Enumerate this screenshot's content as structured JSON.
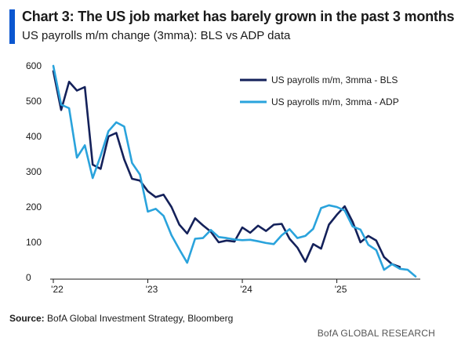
{
  "header": {
    "title": "Chart 3: The US job market has barely grown in the past 3 months",
    "subtitle": "US payrolls m/m change (3mma): BLS vs ADP data"
  },
  "footer": {
    "source_label": "Source:",
    "source_text": " BofA Global Investment Strategy, Bloomberg",
    "brand": "BofA GLOBAL RESEARCH"
  },
  "colors": {
    "accent": "#0b57d0",
    "bls": "#14215a",
    "adp": "#2aa3dc"
  },
  "chart_data": {
    "type": "line",
    "title": "Chart 3: The US job market has barely grown in the past 3 months",
    "subtitle": "US payrolls m/m change (3mma): BLS vs ADP data",
    "xlabel": "",
    "ylabel": "",
    "ylim": [
      0,
      600
    ],
    "xlim": [
      "2022-01",
      "2025-11"
    ],
    "yticks": [
      0,
      100,
      200,
      300,
      400,
      500,
      600
    ],
    "xticks": [
      {
        "label": "'22",
        "x": "2022-01"
      },
      {
        "label": "'23",
        "x": "2023-01"
      },
      {
        "label": "'24",
        "x": "2024-01"
      },
      {
        "label": "'25",
        "x": "2025-01"
      }
    ],
    "grid": false,
    "legend": "top-right",
    "series": [
      {
        "name": "US payrolls m/m, 3mma - BLS",
        "color": "#14215a",
        "points": [
          [
            "2022-01",
            585
          ],
          [
            "2022-02",
            475
          ],
          [
            "2022-03",
            555
          ],
          [
            "2022-04",
            530
          ],
          [
            "2022-05",
            540
          ],
          [
            "2022-06",
            320
          ],
          [
            "2022-07",
            308
          ],
          [
            "2022-08",
            400
          ],
          [
            "2022-09",
            410
          ],
          [
            "2022-10",
            335
          ],
          [
            "2022-11",
            280
          ],
          [
            "2022-12",
            275
          ],
          [
            "2023-01",
            245
          ],
          [
            "2023-02",
            228
          ],
          [
            "2023-03",
            235
          ],
          [
            "2023-04",
            200
          ],
          [
            "2023-05",
            150
          ],
          [
            "2023-06",
            125
          ],
          [
            "2023-07",
            168
          ],
          [
            "2023-08",
            148
          ],
          [
            "2023-09",
            130
          ],
          [
            "2023-10",
            100
          ],
          [
            "2023-11",
            105
          ],
          [
            "2023-12",
            102
          ],
          [
            "2024-01",
            142
          ],
          [
            "2024-02",
            127
          ],
          [
            "2024-03",
            147
          ],
          [
            "2024-04",
            132
          ],
          [
            "2024-05",
            150
          ],
          [
            "2024-06",
            152
          ],
          [
            "2024-07",
            110
          ],
          [
            "2024-08",
            85
          ],
          [
            "2024-09",
            45
          ],
          [
            "2024-10",
            95
          ],
          [
            "2024-11",
            82
          ],
          [
            "2024-12",
            150
          ],
          [
            "2025-01",
            178
          ],
          [
            "2025-02",
            202
          ],
          [
            "2025-03",
            158
          ],
          [
            "2025-04",
            100
          ],
          [
            "2025-05",
            118
          ],
          [
            "2025-06",
            105
          ],
          [
            "2025-07",
            58
          ],
          [
            "2025-08",
            38
          ],
          [
            "2025-09",
            30
          ]
        ]
      },
      {
        "name": "US payrolls m/m, 3mma - ADP",
        "color": "#2aa3dc",
        "points": [
          [
            "2022-01",
            600
          ],
          [
            "2022-02",
            490
          ],
          [
            "2022-03",
            480
          ],
          [
            "2022-04",
            340
          ],
          [
            "2022-05",
            375
          ],
          [
            "2022-06",
            282
          ],
          [
            "2022-07",
            345
          ],
          [
            "2022-08",
            415
          ],
          [
            "2022-09",
            440
          ],
          [
            "2022-10",
            428
          ],
          [
            "2022-11",
            325
          ],
          [
            "2022-12",
            292
          ],
          [
            "2023-01",
            187
          ],
          [
            "2023-02",
            195
          ],
          [
            "2023-03",
            175
          ],
          [
            "2023-04",
            120
          ],
          [
            "2023-05",
            80
          ],
          [
            "2023-06",
            42
          ],
          [
            "2023-07",
            110
          ],
          [
            "2023-08",
            112
          ],
          [
            "2023-09",
            135
          ],
          [
            "2023-10",
            115
          ],
          [
            "2023-11",
            112
          ],
          [
            "2023-12",
            108
          ],
          [
            "2024-01",
            106
          ],
          [
            "2024-02",
            107
          ],
          [
            "2024-03",
            103
          ],
          [
            "2024-04",
            98
          ],
          [
            "2024-05",
            95
          ],
          [
            "2024-06",
            120
          ],
          [
            "2024-07",
            137
          ],
          [
            "2024-08",
            112
          ],
          [
            "2024-09",
            118
          ],
          [
            "2024-10",
            138
          ],
          [
            "2024-11",
            197
          ],
          [
            "2024-12",
            205
          ],
          [
            "2025-01",
            200
          ],
          [
            "2025-02",
            190
          ],
          [
            "2025-03",
            145
          ],
          [
            "2025-04",
            136
          ],
          [
            "2025-05",
            93
          ],
          [
            "2025-06",
            78
          ],
          [
            "2025-07",
            22
          ],
          [
            "2025-08",
            38
          ],
          [
            "2025-09",
            25
          ],
          [
            "2025-10",
            22
          ],
          [
            "2025-11",
            3
          ]
        ]
      }
    ]
  }
}
